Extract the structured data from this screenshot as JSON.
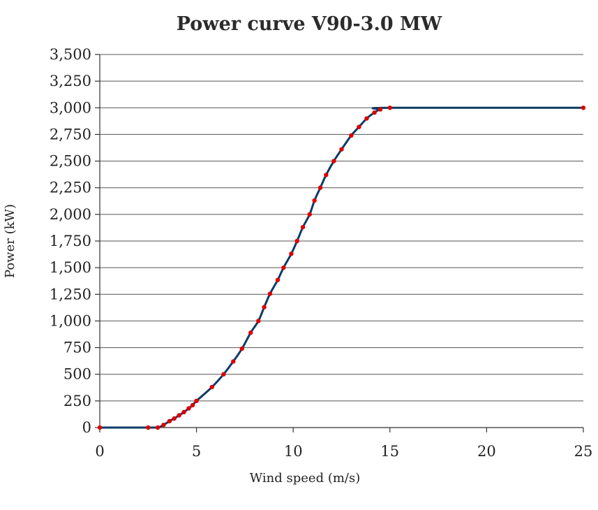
{
  "chart_data": {
    "type": "line",
    "title": "Power curve V90-3.0 MW",
    "xlabel": "Wind speed (m/s)",
    "ylabel": "Power (kW)",
    "xlim": [
      0,
      25
    ],
    "ylim": [
      0,
      3500
    ],
    "xticks": [
      0,
      5,
      10,
      15,
      20,
      25
    ],
    "xtick_labels": [
      "0",
      "5",
      "10",
      "15",
      "20",
      "25"
    ],
    "yticks": [
      0,
      250,
      500,
      750,
      1000,
      1250,
      1500,
      1750,
      2000,
      2250,
      2500,
      2750,
      3000,
      3250,
      3500
    ],
    "ytick_labels": [
      "0",
      "250",
      "500",
      "750",
      "1,000",
      "1,250",
      "1,500",
      "1,750",
      "2,000",
      "2,250",
      "2,500",
      "2,750",
      "3,000",
      "3,250",
      "3,500"
    ],
    "grid": "horizontal",
    "legend": "none",
    "line_color": "#0d3b66",
    "marker_color": "#dd0000",
    "series": [
      {
        "x": [
          0,
          2.5,
          3.0,
          3.3,
          3.6,
          3.85,
          4.1,
          4.35,
          4.6,
          4.8,
          5.0,
          5.8,
          6.4,
          6.9,
          7.35,
          7.8,
          8.2,
          8.5,
          8.8,
          9.2,
          9.5,
          9.9,
          10.2,
          10.5,
          10.85,
          11.1,
          11.4,
          11.7,
          12.1,
          12.5,
          13.0,
          13.4,
          13.8,
          14.2,
          14.5,
          15.0,
          25.0
        ],
        "y": [
          0,
          0,
          0,
          25,
          60,
          85,
          115,
          145,
          180,
          210,
          250,
          380,
          500,
          620,
          740,
          890,
          1000,
          1130,
          1255,
          1385,
          1500,
          1630,
          1750,
          1880,
          2000,
          2130,
          2250,
          2370,
          2500,
          2610,
          2740,
          2820,
          2900,
          2955,
          2985,
          3000,
          3000
        ]
      }
    ]
  }
}
